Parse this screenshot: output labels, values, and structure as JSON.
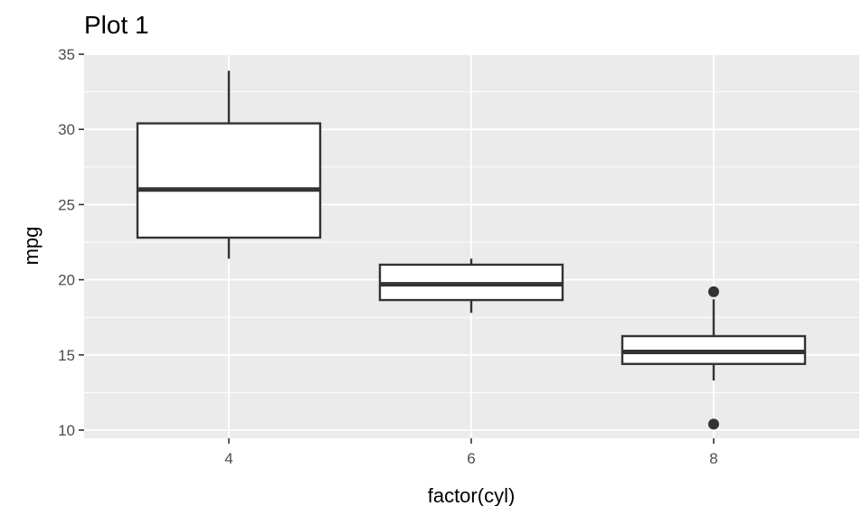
{
  "chart_data": {
    "type": "boxplot",
    "title": "Plot 1",
    "xlabel": "factor(cyl)",
    "ylabel": "mpg",
    "categories": [
      "4",
      "6",
      "8"
    ],
    "ylim": [
      9.5,
      35.0
    ],
    "yticks": [
      10,
      15,
      20,
      25,
      30,
      35
    ],
    "grid": true,
    "boxes": [
      {
        "category": "4",
        "whisker_low": 21.4,
        "q1": 22.8,
        "median": 26.0,
        "q3": 30.4,
        "whisker_high": 33.9,
        "outliers": []
      },
      {
        "category": "6",
        "whisker_low": 17.8,
        "q1": 18.65,
        "median": 19.7,
        "q3": 21.0,
        "whisker_high": 21.4,
        "outliers": []
      },
      {
        "category": "8",
        "whisker_low": 13.3,
        "q1": 14.4,
        "median": 15.2,
        "q3": 16.25,
        "whisker_high": 18.7,
        "outliers": [
          10.4,
          19.2
        ]
      }
    ]
  }
}
